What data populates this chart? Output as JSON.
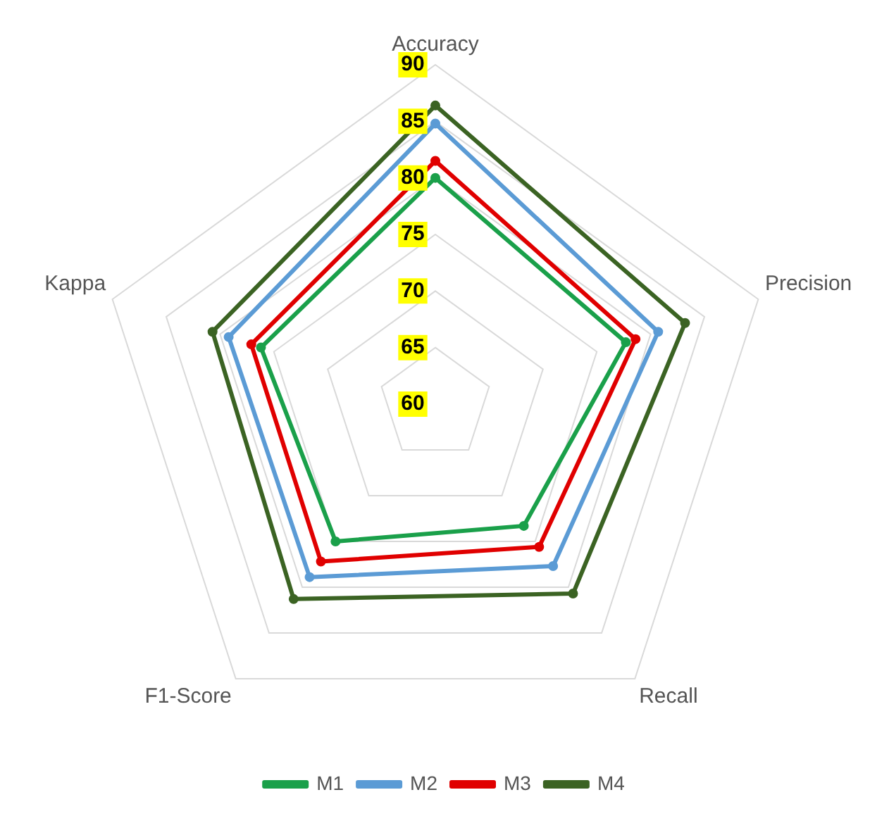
{
  "chart_data": {
    "type": "radar",
    "categories": [
      "Accuracy",
      "Precision",
      "Recall",
      "F1-Score",
      "Kappa"
    ],
    "series": [
      {
        "name": "M1",
        "color": "#1aa04a",
        "values": [
          80,
          77.7,
          73.3,
          75,
          76.2
        ]
      },
      {
        "name": "M2",
        "color": "#5b9bd5",
        "values": [
          84.8,
          80.7,
          77.7,
          78.9,
          79.2
        ]
      },
      {
        "name": "M3",
        "color": "#e00000",
        "values": [
          81.5,
          78.6,
          75.6,
          77.2,
          77.1
        ]
      },
      {
        "name": "M4",
        "color": "#3b6323",
        "values": [
          86.4,
          83.2,
          80.7,
          81.3,
          80.7
        ]
      }
    ],
    "ylim": [
      60,
      90
    ],
    "yticks": [
      60,
      65,
      70,
      75,
      80,
      85,
      90
    ],
    "grid": true,
    "legend": "bottom",
    "marker": "circle",
    "line_style": "solid"
  }
}
